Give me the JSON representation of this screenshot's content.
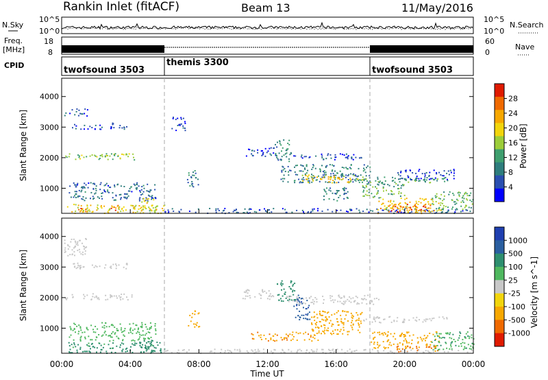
{
  "header": {
    "title": "Rankin Inlet (fitACF)",
    "beam": "Beam 13",
    "date": "11/May/2016"
  },
  "top_panels": {
    "nsky_label": "N.Sky",
    "nsky_ticks": [
      "10^5",
      "10^0"
    ],
    "nsearch_label": "N.Search",
    "freq_label": "Freq.",
    "freq_unit": "[MHz]",
    "freq_ticks": [
      "18",
      "8"
    ],
    "nave_label": "Nave",
    "nave_ticks": [
      "60",
      "0"
    ],
    "cpid_label": "CPID",
    "cpid_segments": [
      {
        "label": "twofsound 3503",
        "start_h": 0,
        "end_h": 6
      },
      {
        "label": "themis 3300",
        "start_h": 6,
        "end_h": 18
      },
      {
        "label": "twofsound 3503",
        "start_h": 18,
        "end_h": 24
      }
    ]
  },
  "chart_data": [
    {
      "type": "heatmap",
      "name": "power",
      "ylabel": "Slant Range [km]",
      "xlim_hours": [
        0,
        24
      ],
      "ylim": [
        180,
        4600
      ],
      "yticks": [
        "1000",
        "2000",
        "3000",
        "4000"
      ],
      "colorbar": {
        "label": "Power [dB]",
        "ticks": [
          "4",
          "8",
          "12",
          "16",
          "20",
          "24",
          "28"
        ],
        "colors": [
          "#0000ff",
          "#2a4fb0",
          "#2e7d7d",
          "#3f9f6f",
          "#9ccd3a",
          "#f2d50c",
          "#f7a800",
          "#f06a00",
          "#e01b00"
        ]
      },
      "regions": [
        {
          "t0": 0.1,
          "t1": 1.5,
          "r0": 3350,
          "r1": 3650,
          "v": 6
        },
        {
          "t0": 0.6,
          "t1": 3.8,
          "r0": 2950,
          "r1": 3150,
          "v": 5
        },
        {
          "t0": 0.2,
          "t1": 4.2,
          "r0": 1950,
          "r1": 2150,
          "v": 15
        },
        {
          "t0": 0.4,
          "t1": 5.5,
          "r0": 600,
          "r1": 1200,
          "v": 7
        },
        {
          "t0": 0.3,
          "t1": 6.0,
          "r0": 200,
          "r1": 500,
          "v": 19
        },
        {
          "t0": 0.9,
          "t1": 1.4,
          "r0": 200,
          "r1": 450,
          "v": 26
        },
        {
          "t0": 2.8,
          "t1": 3.3,
          "r0": 200,
          "r1": 480,
          "v": 25
        },
        {
          "t0": 4.6,
          "t1": 5.6,
          "r0": 250,
          "r1": 700,
          "v": 18
        },
        {
          "t0": 6.4,
          "t1": 7.2,
          "r0": 2900,
          "r1": 3350,
          "v": 4
        },
        {
          "t0": 7.3,
          "t1": 8.0,
          "r0": 1050,
          "r1": 1600,
          "v": 8
        },
        {
          "t0": 6.0,
          "t1": 24.0,
          "r0": 200,
          "r1": 360,
          "v": 6
        },
        {
          "t0": 10.6,
          "t1": 12.5,
          "r0": 2050,
          "r1": 2350,
          "v": 5
        },
        {
          "t0": 12.4,
          "t1": 13.4,
          "r0": 1900,
          "r1": 2600,
          "v": 10
        },
        {
          "t0": 12.7,
          "t1": 18.0,
          "r0": 1200,
          "r1": 1800,
          "v": 9
        },
        {
          "t0": 13.5,
          "t1": 17.5,
          "r0": 1950,
          "r1": 2150,
          "v": 6
        },
        {
          "t0": 14.0,
          "t1": 17.8,
          "r0": 1200,
          "r1": 1450,
          "v": 20
        },
        {
          "t0": 15.2,
          "t1": 16.8,
          "r0": 600,
          "r1": 1100,
          "v": 9
        },
        {
          "t0": 17.0,
          "t1": 22.5,
          "r0": 1200,
          "r1": 1400,
          "v": 12
        },
        {
          "t0": 17.5,
          "t1": 20.0,
          "r0": 700,
          "r1": 1200,
          "v": 13
        },
        {
          "t0": 18.4,
          "t1": 22.2,
          "r0": 200,
          "r1": 700,
          "v": 21
        },
        {
          "t0": 19.0,
          "t1": 21.5,
          "r0": 250,
          "r1": 500,
          "v": 27
        },
        {
          "t0": 21.5,
          "t1": 24.0,
          "r0": 300,
          "r1": 900,
          "v": 14
        },
        {
          "t0": 19.5,
          "t1": 23.0,
          "r0": 1300,
          "r1": 1650,
          "v": 5
        }
      ]
    },
    {
      "type": "heatmap",
      "name": "velocity",
      "xlabel": "Time UT",
      "ylabel": "Slant Range [km]",
      "xlim_hours": [
        0,
        24
      ],
      "xticks": [
        "00:00",
        "04:00",
        "08:00",
        "12:00",
        "16:00",
        "20:00",
        "00:00"
      ],
      "ylim": [
        180,
        4600
      ],
      "yticks": [
        "1000",
        "2000",
        "3000",
        "4000"
      ],
      "colorbar": {
        "label": "Velocity [m s^-1]",
        "ticks": [
          "1000",
          "500",
          "100",
          "25",
          "-25",
          "-100",
          "-500",
          "-1000"
        ],
        "colors": [
          "#1f3fb0",
          "#2a5fa0",
          "#2e8f6f",
          "#4fb85f",
          "#c8c8c8",
          "#f2d50c",
          "#f7a800",
          "#f06a00",
          "#e01b00"
        ]
      },
      "regions": [
        {
          "t0": 0.1,
          "t1": 1.5,
          "r0": 3350,
          "r1": 3950,
          "v": 0
        },
        {
          "t0": 0.6,
          "t1": 3.8,
          "r0": 2950,
          "r1": 3150,
          "v": 0
        },
        {
          "t0": 0.2,
          "t1": 4.2,
          "r0": 1950,
          "r1": 2150,
          "v": 0
        },
        {
          "t0": 0.4,
          "t1": 5.5,
          "r0": 600,
          "r1": 1200,
          "v": 60
        },
        {
          "t0": 0.3,
          "t1": 6.0,
          "r0": 200,
          "r1": 550,
          "v": 150
        },
        {
          "t0": 4.5,
          "t1": 5.8,
          "r0": 250,
          "r1": 650,
          "v": 300
        },
        {
          "t0": 7.3,
          "t1": 8.0,
          "r0": 1050,
          "r1": 1600,
          "v": -200
        },
        {
          "t0": 10.5,
          "t1": 12.4,
          "r0": 1950,
          "r1": 2300,
          "v": 0
        },
        {
          "t0": 12.5,
          "t1": 13.6,
          "r0": 1900,
          "r1": 2600,
          "v": 350
        },
        {
          "t0": 13.5,
          "t1": 14.5,
          "r0": 1300,
          "r1": 2100,
          "v": 800
        },
        {
          "t0": 13.0,
          "t1": 18.5,
          "r0": 1800,
          "r1": 2100,
          "v": 0
        },
        {
          "t0": 14.5,
          "t1": 17.5,
          "r0": 800,
          "r1": 1600,
          "v": -350
        },
        {
          "t0": 11.0,
          "t1": 15.0,
          "r0": 600,
          "r1": 900,
          "v": -400
        },
        {
          "t0": 17.5,
          "t1": 22.5,
          "r0": 1200,
          "r1": 1400,
          "v": 0
        },
        {
          "t0": 18.0,
          "t1": 22.0,
          "r0": 350,
          "r1": 900,
          "v": -300
        },
        {
          "t0": 19.5,
          "t1": 22.0,
          "r0": 250,
          "r1": 450,
          "v": -600
        },
        {
          "t0": 21.5,
          "t1": 24.0,
          "r0": 300,
          "r1": 900,
          "v": 80
        },
        {
          "t0": 6.0,
          "t1": 24.0,
          "r0": 200,
          "r1": 330,
          "v": 0
        }
      ]
    }
  ]
}
